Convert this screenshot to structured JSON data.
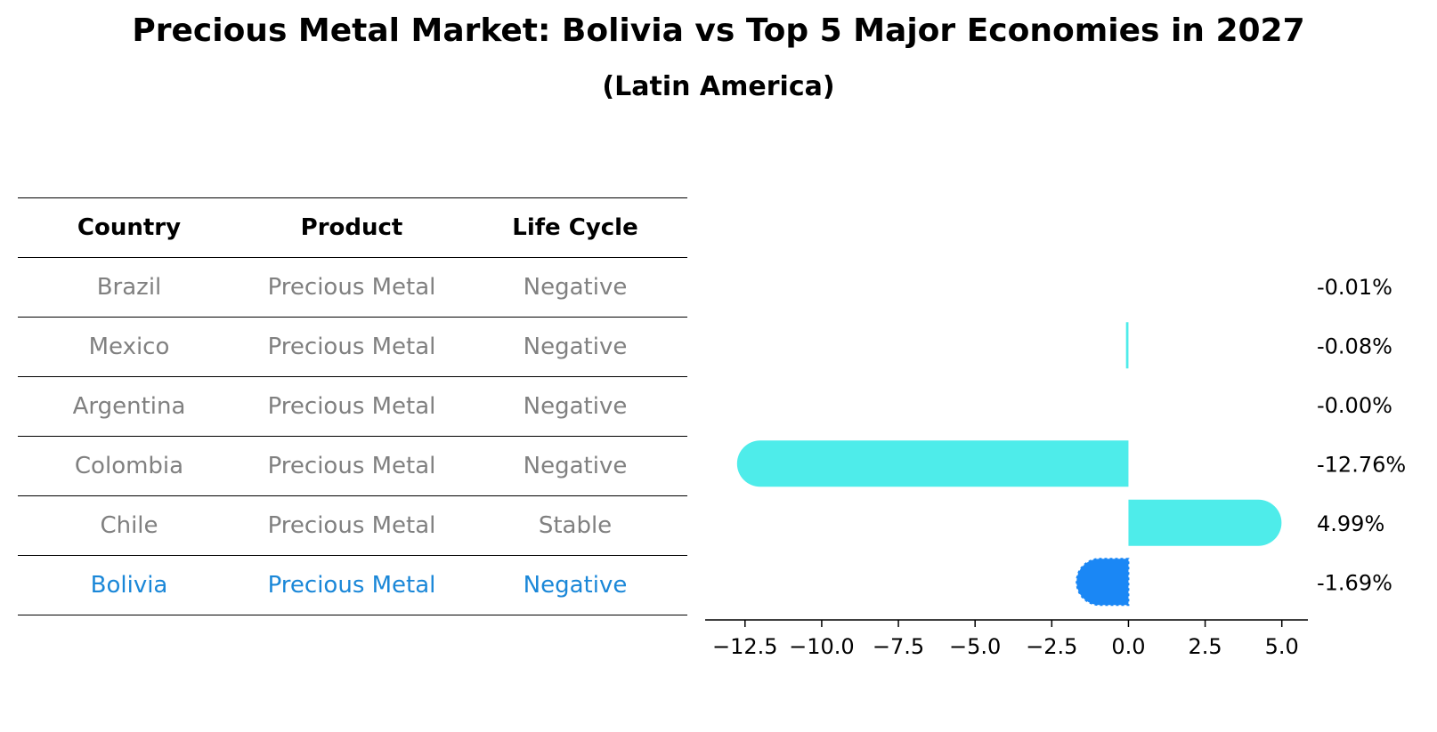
{
  "title": "Precious Metal Market: Bolivia vs Top 5 Major Economies in 2027",
  "subtitle": "(Latin America)",
  "table": {
    "headers": {
      "country": "Country",
      "product": "Product",
      "life_cycle": "Life Cycle"
    },
    "rows": [
      {
        "country": "Brazil",
        "product": "Precious Metal",
        "life_cycle": "Negative"
      },
      {
        "country": "Mexico",
        "product": "Precious Metal",
        "life_cycle": "Negative"
      },
      {
        "country": "Argentina",
        "product": "Precious Metal",
        "life_cycle": "Negative"
      },
      {
        "country": "Colombia",
        "product": "Precious Metal",
        "life_cycle": "Negative"
      },
      {
        "country": "Chile",
        "product": "Precious Metal",
        "life_cycle": "Stable"
      },
      {
        "country": "Bolivia",
        "product": "Precious Metal",
        "life_cycle": "Negative"
      }
    ]
  },
  "colors": {
    "bar_default": "#4eecea",
    "bar_highlight": "#1a87f5",
    "table_text": "#808080",
    "table_highlight_text": "#1a87d8"
  },
  "chart_data": {
    "type": "bar",
    "orientation": "horizontal",
    "categories": [
      "Brazil",
      "Mexico",
      "Argentina",
      "Colombia",
      "Chile",
      "Bolivia"
    ],
    "values": [
      -0.01,
      -0.08,
      -0.0,
      -12.76,
      4.99,
      -1.69
    ],
    "data_labels": [
      "-0.01%",
      "-0.08%",
      "-0.00%",
      "-12.76%",
      "4.99%",
      "-1.69%"
    ],
    "highlight": "Bolivia",
    "xlim": [
      -13.8,
      5.85
    ],
    "xticks": [
      -12.5,
      -10.0,
      -7.5,
      -5.0,
      -2.5,
      0.0,
      2.5,
      5.0
    ],
    "xtick_labels": [
      "−12.5",
      "−10.0",
      "−7.5",
      "−5.0",
      "−2.5",
      "0.0",
      "2.5",
      "5.0"
    ],
    "grid": false,
    "xlabel": "",
    "ylabel": ""
  }
}
